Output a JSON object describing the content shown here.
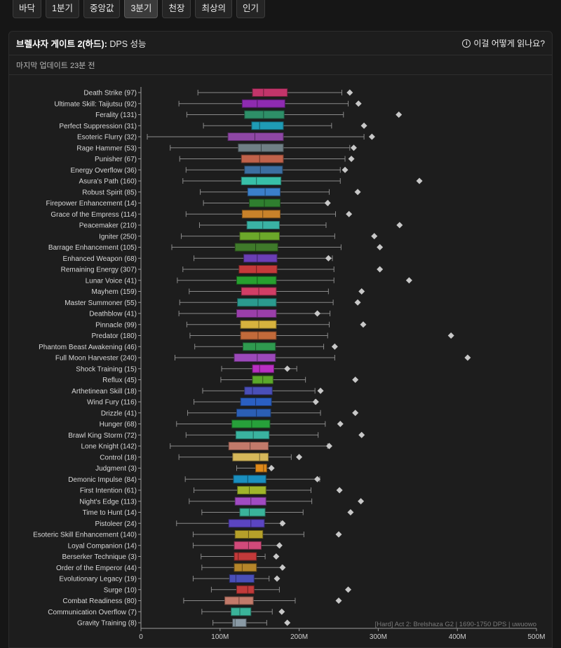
{
  "tabs": [
    {
      "label": "바닥",
      "active": false
    },
    {
      "label": "1분기",
      "active": false
    },
    {
      "label": "중앙값",
      "active": false
    },
    {
      "label": "3분기",
      "active": true
    },
    {
      "label": "천장",
      "active": false
    },
    {
      "label": "최상의",
      "active": false
    },
    {
      "label": "인기",
      "active": false
    }
  ],
  "header": {
    "title_bold": "브렐샤자 게이트 2(하드):",
    "title_rest": " DPS 성능",
    "help_label": "이걸 어떻게 읽나요?",
    "help_icon": "info-icon"
  },
  "last_update": "마지막 업데이트 23분 전",
  "chart_data": {
    "type": "box",
    "orientation": "horizontal",
    "watermark": "[Hard] Act 2: Brelshaza G2 | 1690-1750 DPS | uwuowo",
    "x_ticks": [
      "0",
      "100M",
      "200M",
      "300M",
      "400M",
      "500M"
    ],
    "xlim": [
      0,
      500
    ],
    "value_unit": "M",
    "items": [
      {
        "label": "Death Strike (97)",
        "whisker_low": 72,
        "q1": 141,
        "median": 155,
        "q3": 185,
        "whisker_high": 254,
        "max": 264,
        "color": "#c2356a"
      },
      {
        "label": "Ultimate Skill: Taijutsu (92)",
        "whisker_low": 48,
        "q1": 128,
        "median": 147,
        "q3": 182,
        "whisker_high": 262,
        "max": 275,
        "color": "#8e2bb0"
      },
      {
        "label": "Ferality (131)",
        "whisker_low": 58,
        "q1": 131,
        "median": 155,
        "q3": 181,
        "whisker_high": 256,
        "max": 326,
        "color": "#2e8f68"
      },
      {
        "label": "Perfect Suppression (31)",
        "whisker_low": 79,
        "q1": 140,
        "median": 150,
        "q3": 180,
        "whisker_high": 241,
        "max": 282,
        "color": "#1f9bb5"
      },
      {
        "label": "Esoteric Flurry (32)",
        "whisker_low": 8,
        "q1": 110,
        "median": 144,
        "q3": 180,
        "whisker_high": 282,
        "max": 292,
        "color": "#8e47a5"
      },
      {
        "label": "Rage Hammer (53)",
        "whisker_low": 37,
        "q1": 123,
        "median": 152,
        "q3": 180,
        "whisker_high": 264,
        "max": 269,
        "color": "#6f7f85"
      },
      {
        "label": "Punisher (67)",
        "whisker_low": 49,
        "q1": 127,
        "median": 150,
        "q3": 180,
        "whisker_high": 258,
        "max": 266,
        "color": "#c0624a"
      },
      {
        "label": "Energy Overflow (36)",
        "whisker_low": 57,
        "q1": 131,
        "median": 151,
        "q3": 179,
        "whisker_high": 252,
        "max": 258,
        "color": "#3c6fa1"
      },
      {
        "label": "Asura's Path (160)",
        "whisker_low": 53,
        "q1": 127,
        "median": 146,
        "q3": 177,
        "whisker_high": 252,
        "max": 352,
        "color": "#38bfa8"
      },
      {
        "label": "Robust Spirit (85)",
        "whisker_low": 75,
        "q1": 135,
        "median": 157,
        "q3": 176,
        "whisker_high": 238,
        "max": 274,
        "color": "#3b7fc9"
      },
      {
        "label": "Firepower Enhancement (14)",
        "whisker_low": 79,
        "q1": 137,
        "median": 156,
        "q3": 176,
        "whisker_high": 237,
        "max": 236,
        "color": "#2f7f2f"
      },
      {
        "label": "Grace of the Empress (114)",
        "whisker_low": 57,
        "q1": 128,
        "median": 154,
        "q3": 176,
        "whisker_high": 246,
        "max": 263,
        "color": "#c9822a"
      },
      {
        "label": "Peacemaker (210)",
        "whisker_low": 74,
        "q1": 134,
        "median": 154,
        "q3": 175,
        "whisker_high": 234,
        "max": 327,
        "color": "#3ab3a5"
      },
      {
        "label": "Igniter (250)",
        "whisker_low": 51,
        "q1": 125,
        "median": 150,
        "q3": 175,
        "whisker_high": 245,
        "max": 295,
        "color": "#6ca82a"
      },
      {
        "label": "Barrage Enhancement (105)",
        "whisker_low": 39,
        "q1": 119,
        "median": 145,
        "q3": 173,
        "whisker_high": 253,
        "max": 302,
        "color": "#3f7a2a"
      },
      {
        "label": "Enhanced Weapon (68)",
        "whisker_low": 67,
        "q1": 130,
        "median": 147,
        "q3": 172,
        "whisker_high": 242,
        "max": 237,
        "color": "#6a3fb5"
      },
      {
        "label": "Remaining Energy (307)",
        "whisker_low": 53,
        "q1": 124,
        "median": 146,
        "q3": 172,
        "whisker_high": 244,
        "max": 302,
        "color": "#c53a3a"
      },
      {
        "label": "Lunar Voice (41)",
        "whisker_low": 46,
        "q1": 121,
        "median": 147,
        "q3": 171,
        "whisker_high": 244,
        "max": 339,
        "color": "#27a02f"
      },
      {
        "label": "Mayhem (159)",
        "whisker_low": 61,
        "q1": 127,
        "median": 149,
        "q3": 171,
        "whisker_high": 237,
        "max": 279,
        "color": "#d13e66"
      },
      {
        "label": "Master Summoner (55)",
        "whisker_low": 49,
        "q1": 122,
        "median": 148,
        "q3": 171,
        "whisker_high": 243,
        "max": 274,
        "color": "#2b9a8f"
      },
      {
        "label": "Deathblow (41)",
        "whisker_low": 48,
        "q1": 121,
        "median": 147,
        "q3": 171,
        "whisker_high": 239,
        "max": 223,
        "color": "#9a3faa"
      },
      {
        "label": "Pinnacle (99)",
        "whisker_low": 58,
        "q1": 126,
        "median": 149,
        "q3": 171,
        "whisker_high": 238,
        "max": 281,
        "color": "#d6b23e"
      },
      {
        "label": "Predator (180)",
        "whisker_low": 62,
        "q1": 126,
        "median": 148,
        "q3": 171,
        "whisker_high": 236,
        "max": 392,
        "color": "#c26a3a"
      },
      {
        "label": "Phantom Beast Awakening (46)",
        "whisker_low": 68,
        "q1": 129,
        "median": 145,
        "q3": 170,
        "whisker_high": 231,
        "max": 245,
        "color": "#2f9a4f"
      },
      {
        "label": "Full Moon Harvester (240)",
        "whisker_low": 43,
        "q1": 118,
        "median": 147,
        "q3": 170,
        "whisker_high": 245,
        "max": 413,
        "color": "#9b49b9"
      },
      {
        "label": "Shock Training (15)",
        "whisker_low": 102,
        "q1": 141,
        "median": 150,
        "q3": 168,
        "whisker_high": 197,
        "max": 185,
        "color": "#b82fc2"
      },
      {
        "label": "Reflux (45)",
        "whisker_low": 101,
        "q1": 141,
        "median": 154,
        "q3": 167,
        "whisker_high": 208,
        "max": 271,
        "color": "#5ba82a"
      },
      {
        "label": "Arthetinean Skill (18)",
        "whisker_low": 78,
        "q1": 131,
        "median": 141,
        "q3": 166,
        "whisker_high": 220,
        "max": 227,
        "color": "#4a4fb8"
      },
      {
        "label": "Wind Fury (116)",
        "whisker_low": 67,
        "q1": 126,
        "median": 145,
        "q3": 165,
        "whisker_high": 220,
        "max": 221,
        "color": "#2a5fc2"
      },
      {
        "label": "Drizzle (41)",
        "whisker_low": 59,
        "q1": 121,
        "median": 146,
        "q3": 164,
        "whisker_high": 227,
        "max": 271,
        "color": "#2b5fb5"
      },
      {
        "label": "Hunger (68)",
        "whisker_low": 45,
        "q1": 115,
        "median": 140,
        "q3": 163,
        "whisker_high": 233,
        "max": 252,
        "color": "#27a03a"
      },
      {
        "label": "Brawl King Storm (72)",
        "whisker_low": 57,
        "q1": 120,
        "median": 142,
        "q3": 162,
        "whisker_high": 224,
        "max": 279,
        "color": "#3ab3a0"
      },
      {
        "label": "Lone Knight (142)",
        "whisker_low": 37,
        "q1": 111,
        "median": 138,
        "q3": 161,
        "whisker_high": 236,
        "max": 238,
        "color": "#c27a6a"
      },
      {
        "label": "Control (18)",
        "whisker_low": 48,
        "q1": 116,
        "median": 150,
        "q3": 161,
        "whisker_high": 190,
        "max": 200,
        "color": "#d6b85a"
      },
      {
        "label": "Judgment (3)",
        "whisker_low": 121,
        "q1": 145,
        "median": 155,
        "q3": 159,
        "whisker_high": 164,
        "max": 165,
        "color": "#e08a1a"
      },
      {
        "label": "Demonic Impulse (84)",
        "whisker_low": 56,
        "q1": 117,
        "median": 135,
        "q3": 158,
        "whisker_high": 226,
        "max": 223,
        "color": "#1a8fbf"
      },
      {
        "label": "First Intention (61)",
        "whisker_low": 67,
        "q1": 122,
        "median": 137,
        "q3": 158,
        "whisker_high": 215,
        "max": 251,
        "color": "#a0b52a"
      },
      {
        "label": "Night's Edge (113)",
        "whisker_low": 61,
        "q1": 119,
        "median": 139,
        "q3": 158,
        "whisker_high": 216,
        "max": 278,
        "color": "#a04bc2"
      },
      {
        "label": "Time to Hunt (14)",
        "whisker_low": 77,
        "q1": 125,
        "median": 137,
        "q3": 157,
        "whisker_high": 205,
        "max": 265,
        "color": "#3ab39a"
      },
      {
        "label": "Pistoleer (24)",
        "whisker_low": 45,
        "q1": 111,
        "median": 139,
        "q3": 156,
        "whisker_high": 177,
        "max": 179,
        "color": "#5b45c2"
      },
      {
        "label": "Esoteric Skill Enhancement (140)",
        "whisker_low": 66,
        "q1": 119,
        "median": 136,
        "q3": 154,
        "whisker_high": 206,
        "max": 250,
        "color": "#b5a02a"
      },
      {
        "label": "Loyal Companion (14)",
        "whisker_low": 66,
        "q1": 118,
        "median": 136,
        "q3": 152,
        "whisker_high": 176,
        "max": 175,
        "color": "#d14a7a"
      },
      {
        "label": "Berserker Technique (3)",
        "whisker_low": 76,
        "q1": 118,
        "median": 123,
        "q3": 146,
        "whisker_high": 157,
        "max": 171,
        "color": "#c23a3a"
      },
      {
        "label": "Order of the Emperor (44)",
        "whisker_low": 77,
        "q1": 118,
        "median": 128,
        "q3": 146,
        "whisker_high": 178,
        "max": 179,
        "color": "#b5852a"
      },
      {
        "label": "Evolutionary Legacy (19)",
        "whisker_low": 66,
        "q1": 112,
        "median": 120,
        "q3": 143,
        "whisker_high": 162,
        "max": 172,
        "color": "#4a4fb8"
      },
      {
        "label": "Surge (10)",
        "whisker_low": 89,
        "q1": 121,
        "median": 135,
        "q3": 143,
        "whisker_high": 175,
        "max": 262,
        "color": "#c23a3a"
      },
      {
        "label": "Combat Readiness (80)",
        "whisker_low": 54,
        "q1": 106,
        "median": 124,
        "q3": 142,
        "whisker_high": 195,
        "max": 250,
        "color": "#c27a6a"
      },
      {
        "label": "Communication Overflow (7)",
        "whisker_low": 77,
        "q1": 114,
        "median": 125,
        "q3": 139,
        "whisker_high": 166,
        "max": 178,
        "color": "#3ab39a"
      },
      {
        "label": "Gravity Training (8)",
        "whisker_low": 91,
        "q1": 116,
        "median": 119,
        "q3": 133,
        "whisker_high": 159,
        "max": 185,
        "color": "#8a9aa5"
      }
    ]
  }
}
